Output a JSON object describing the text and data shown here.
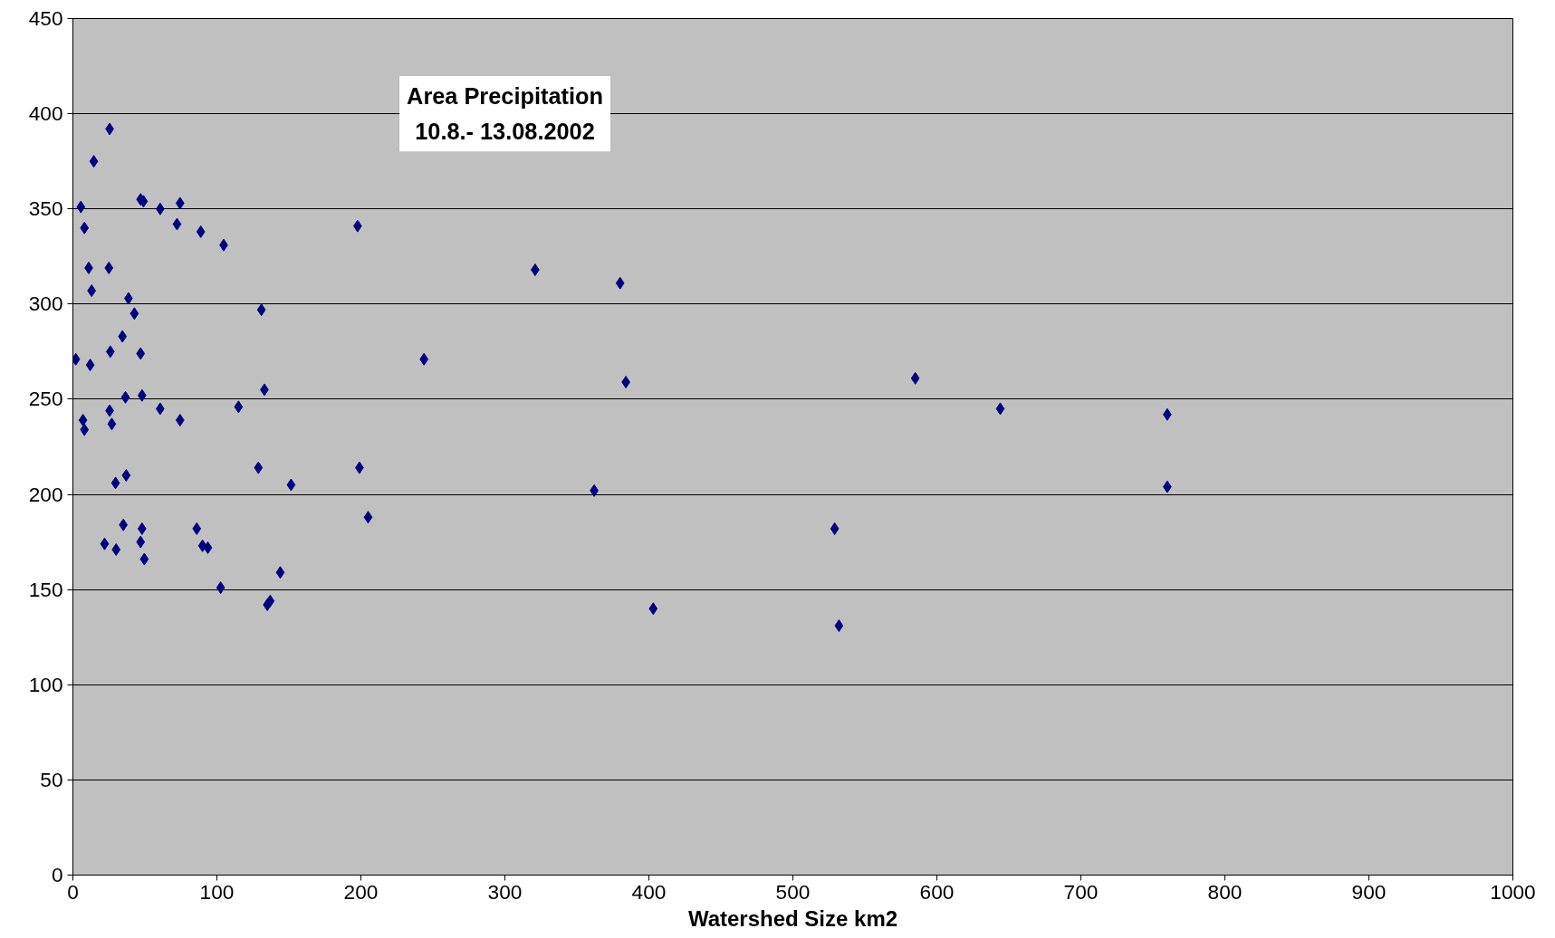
{
  "chart_data": {
    "type": "scatter",
    "title": "Area Precipitation\n10.8.- 13.08.2002",
    "xlabel": "Watershed Size km2",
    "x": [
      2,
      5.5,
      8,
      7,
      8,
      11,
      13,
      12,
      14.5,
      25.5,
      25,
      26,
      25.5,
      27,
      29.6,
      22,
      30,
      35,
      37,
      36.5,
      34.4,
      38.6,
      42.7,
      47,
      48,
      47,
      49,
      48,
      47,
      49.6,
      60.6,
      60.6,
      74.4,
      72.3,
      74.4,
      88.8,
      86,
      90,
      93.7,
      104.7,
      102.6,
      115,
      130.9,
      133,
      128.8,
      151.5,
      144,
      135,
      137,
      197.7,
      199,
      205,
      243.8,
      321,
      380,
      384,
      362,
      403,
      529,
      532,
      585,
      644,
      760,
      760
    ],
    "series": [
      {
        "color": "#000080",
        "values": [
          271,
          351,
          340,
          239,
          234,
          319,
          307,
          268,
          375,
          392,
          319,
          275,
          244,
          237,
          206,
          174,
          171,
          184,
          210,
          251,
          283,
          303,
          295,
          274,
          252,
          355,
          354,
          182,
          175,
          166,
          350,
          245,
          353,
          342,
          239,
          338,
          182,
          173,
          172,
          331,
          151,
          246,
          297,
          255,
          214,
          205,
          159,
          142,
          144,
          341,
          214,
          188,
          271,
          318,
          311,
          259,
          202,
          140,
          182,
          131,
          261,
          245,
          242,
          204
        ]
      }
    ],
    "xlim": [
      0,
      1000
    ],
    "xticks": [
      0,
      100,
      200,
      300,
      400,
      500,
      600,
      700,
      800,
      900,
      1000
    ],
    "ylim": [
      0,
      450
    ],
    "yticks": [
      0,
      50,
      100,
      150,
      200,
      250,
      300,
      350,
      400,
      450
    ],
    "grid": "y",
    "marker": "diamond"
  }
}
